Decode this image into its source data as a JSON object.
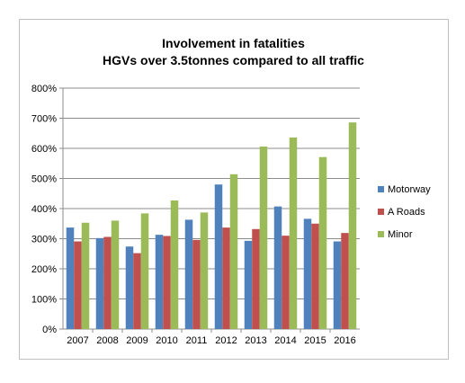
{
  "chart_data": {
    "type": "bar",
    "title_line1": "Involvement in fatalities",
    "title_line2": "HGVs over 3.5tonnes compared to all traffic",
    "categories": [
      "2007",
      "2008",
      "2009",
      "2010",
      "2011",
      "2012",
      "2013",
      "2014",
      "2015",
      "2016"
    ],
    "series": [
      {
        "name": "Motorway",
        "color": "#4f81bd",
        "values": [
          337,
          302,
          274,
          313,
          363,
          480,
          293,
          407,
          366,
          291
        ]
      },
      {
        "name": "A Roads",
        "color": "#c0504d",
        "values": [
          291,
          306,
          252,
          309,
          296,
          337,
          332,
          310,
          350,
          319
        ]
      },
      {
        "name": "Minor",
        "color": "#9bbb59",
        "values": [
          353,
          360,
          384,
          427,
          387,
          514,
          606,
          636,
          571,
          686
        ]
      }
    ],
    "y_ticks": [
      "0%",
      "100%",
      "200%",
      "300%",
      "400%",
      "500%",
      "600%",
      "700%",
      "800%"
    ],
    "ylim": [
      0,
      800
    ],
    "grid": true,
    "legend_position": "right"
  }
}
